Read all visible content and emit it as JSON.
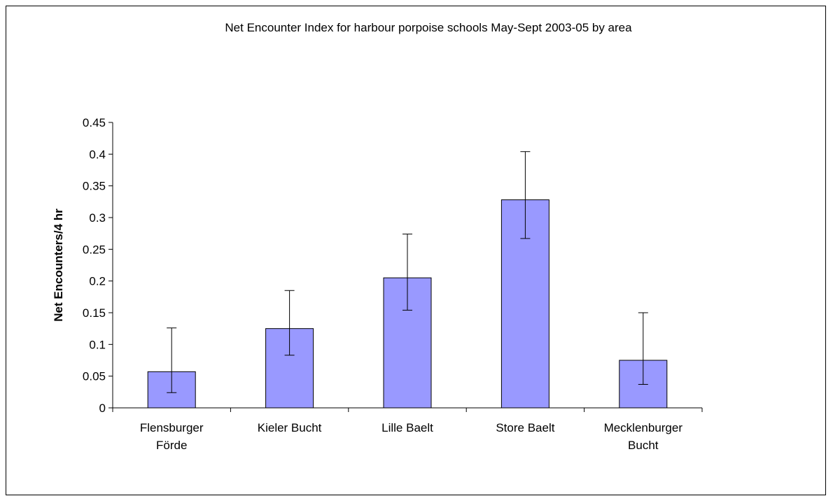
{
  "chart_data": {
    "type": "bar",
    "title": "Net Encounter Index for harbour porpoise schools May-Sept 2003-05 by area",
    "xlabel": "",
    "ylabel": "Net Encounters/4 hr",
    "categories": [
      [
        "Flensburger",
        "Förde"
      ],
      [
        "Kieler Bucht"
      ],
      [
        "Lille Baelt"
      ],
      [
        "Store Baelt"
      ],
      [
        "Mecklenburger",
        "Bucht"
      ]
    ],
    "values": [
      0.057,
      0.125,
      0.205,
      0.328,
      0.075
    ],
    "error_low": [
      0.024,
      0.083,
      0.154,
      0.267,
      0.037
    ],
    "error_high": [
      0.126,
      0.185,
      0.274,
      0.404,
      0.15
    ],
    "ylim": [
      0,
      0.45
    ],
    "yticks": [
      "0",
      "0.05",
      "0.1",
      "0.15",
      "0.2",
      "0.25",
      "0.3",
      "0.35",
      "0.4",
      "0.45"
    ],
    "grid": false,
    "legend": "none",
    "colors": {
      "bar_fill": "#9999ff",
      "bar_stroke": "#000000",
      "axis": "#000000",
      "error_bar": "#000000"
    }
  }
}
